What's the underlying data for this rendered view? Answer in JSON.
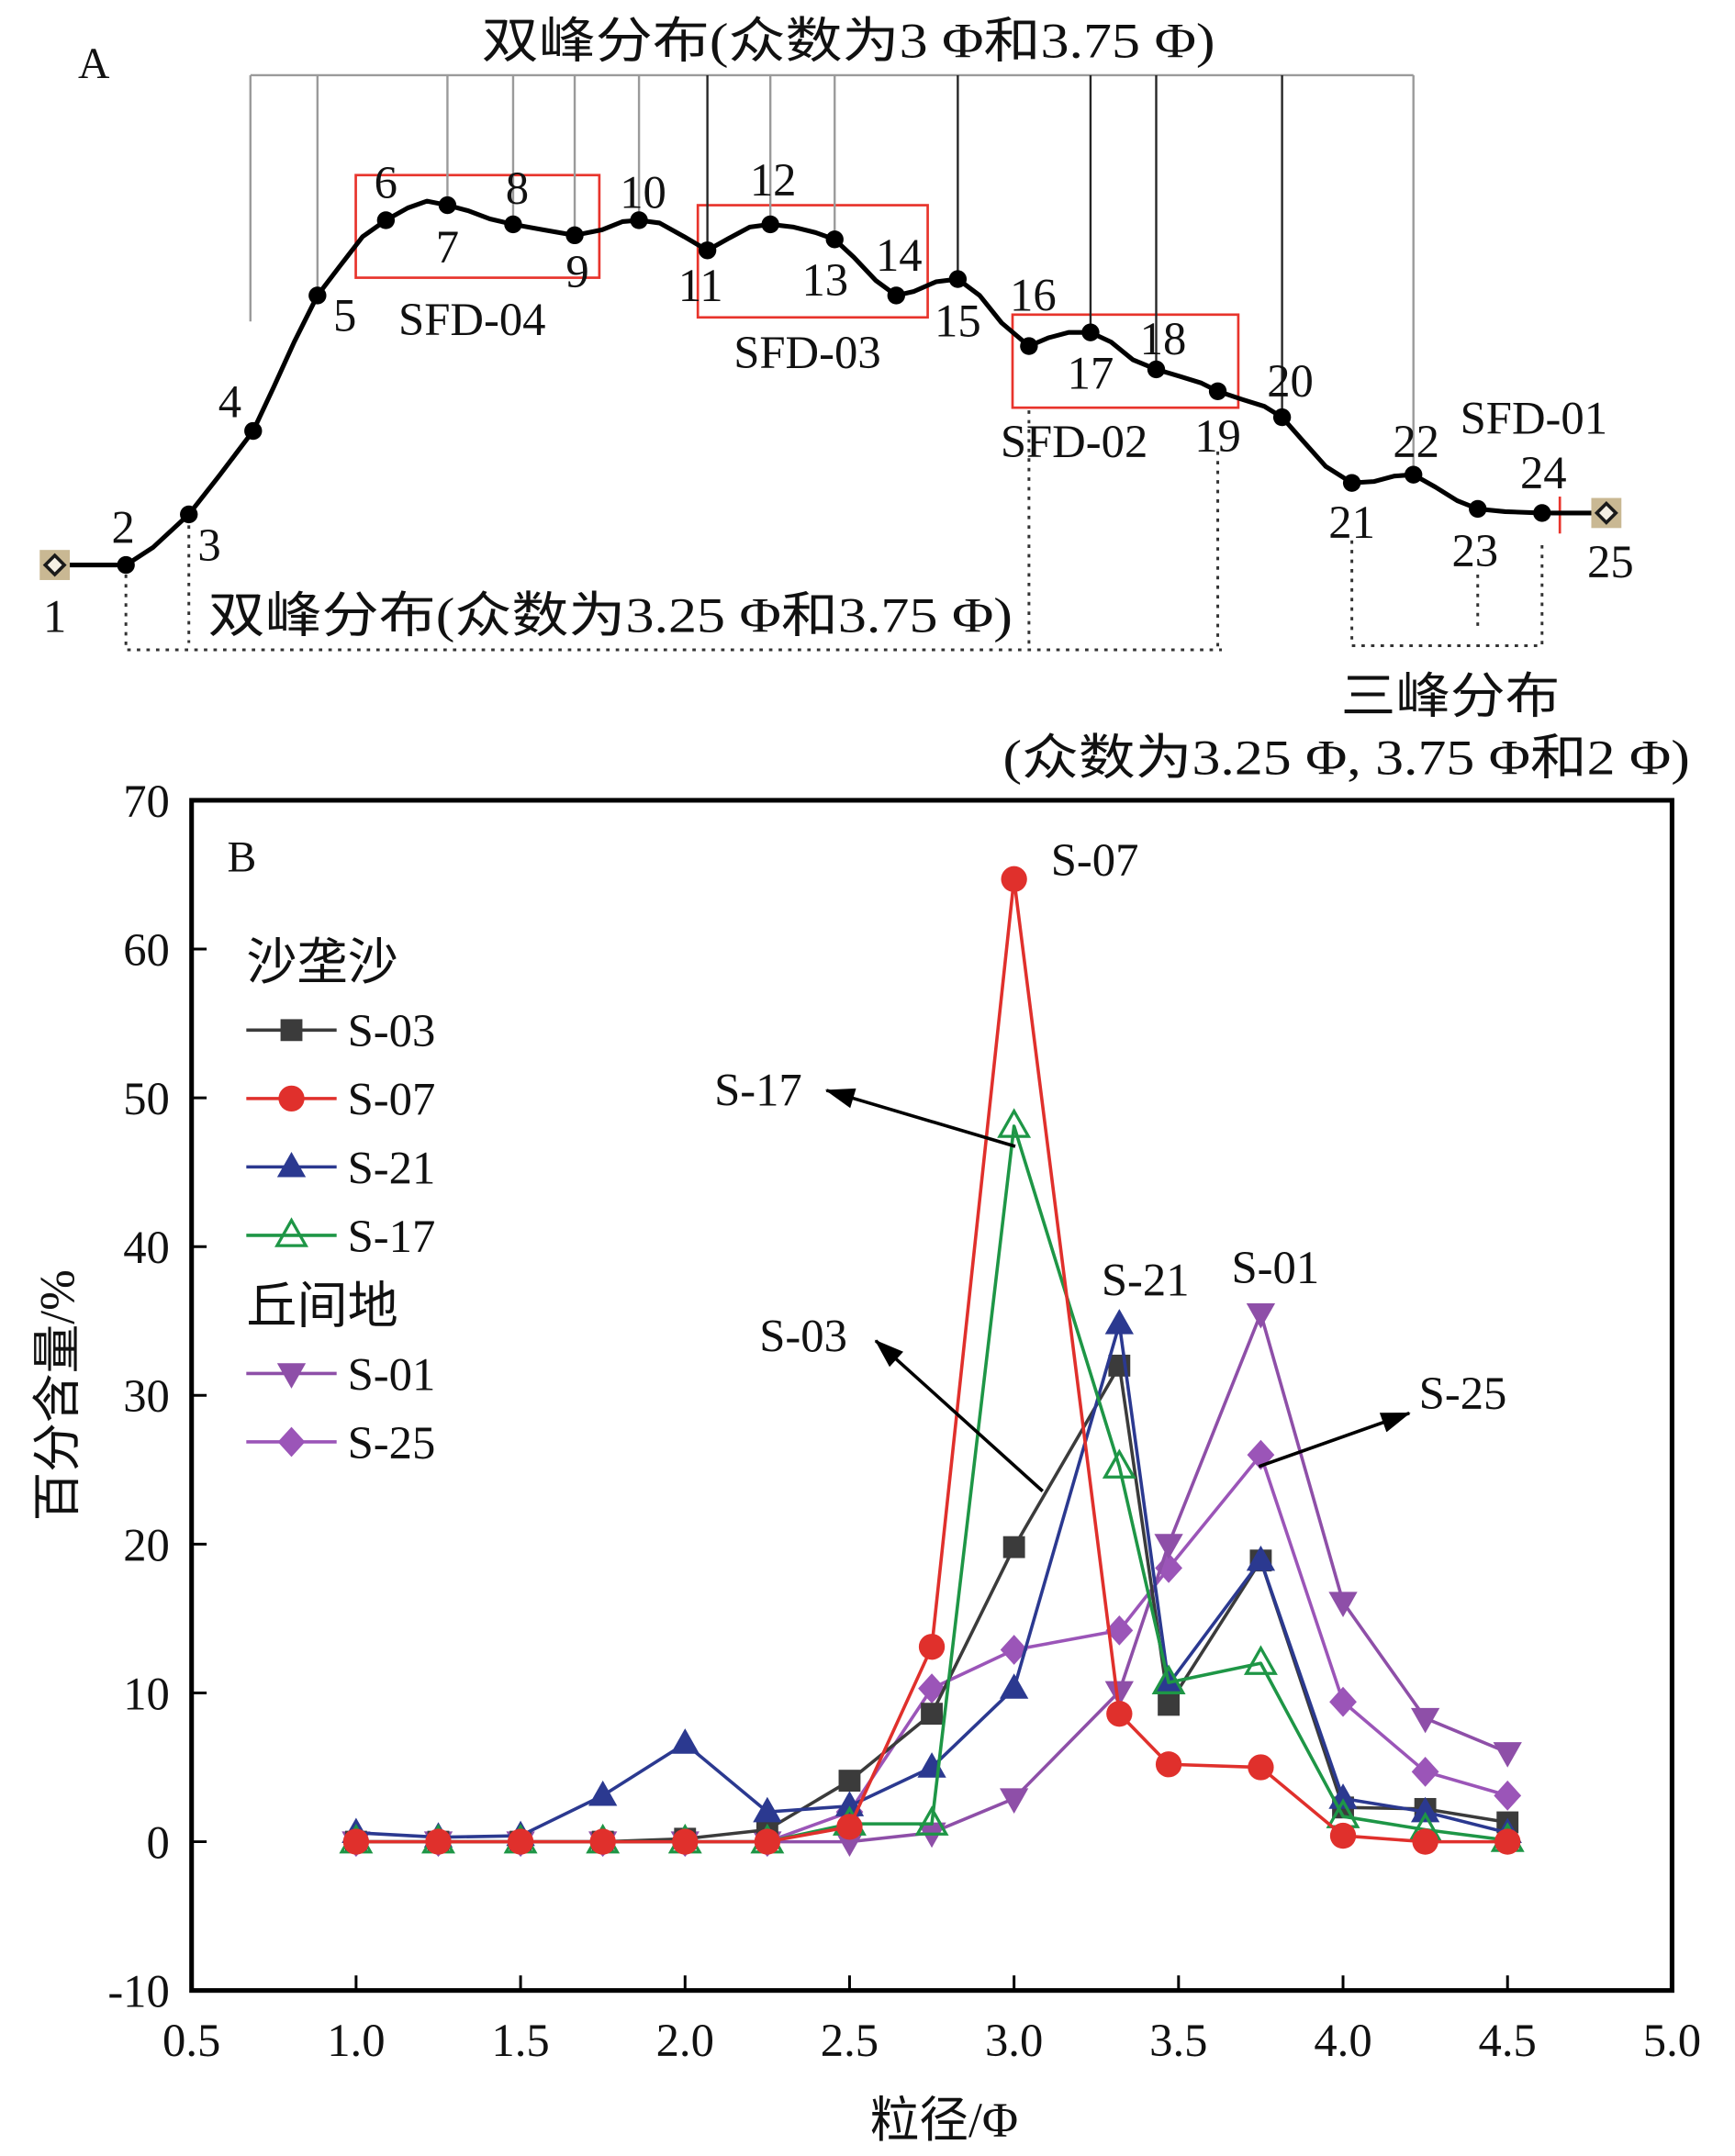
{
  "panel_a": {
    "label": "A",
    "top_bracket_label": "双峰分布(众数为3 Φ和3.75 Φ)",
    "bottom_bracket_label": "双峰分布(众数为3.25 Φ和3.75 Φ)",
    "right_bracket_title": "三峰分布",
    "right_bracket_subtitle": "(众数为3.25 Φ, 3.75 Φ和2 Φ)",
    "box_labels": {
      "sfd04": "SFD-04",
      "sfd03": "SFD-03",
      "sfd02": "SFD-02",
      "sfd01": "SFD-01"
    },
    "point_labels": [
      "1",
      "2",
      "3",
      "4",
      "5",
      "6",
      "7",
      "8",
      "9",
      "10",
      "11",
      "12",
      "13",
      "14",
      "15",
      "16",
      "17",
      "18",
      "19",
      "20",
      "21",
      "22",
      "23",
      "24",
      "25"
    ],
    "colors": {
      "profile": "#000000",
      "box": "#e8342c",
      "endpoint_fill": "#c9b893"
    }
  },
  "chart_data": {
    "type": "line",
    "panel_label": "B",
    "xlabel": "粒径/Φ",
    "ylabel": "百分含量/%",
    "xlim": [
      0.5,
      5.0
    ],
    "ylim": [
      -10,
      70
    ],
    "xtick_labels": [
      "0.5",
      "1.0",
      "1.5",
      "2.0",
      "2.5",
      "3.0",
      "3.5",
      "4.0",
      "4.5",
      "5.0"
    ],
    "ytick_labels": [
      "-10",
      "0",
      "10",
      "20",
      "30",
      "40",
      "50",
      "60",
      "70"
    ],
    "grid": false,
    "legend": {
      "position": "top-left",
      "groups": [
        {
          "title": "沙垄沙",
          "members": [
            0,
            1,
            2,
            3
          ]
        },
        {
          "title": "丘间地",
          "members": [
            4,
            5
          ]
        }
      ]
    },
    "x": [
      1.0,
      1.25,
      1.5,
      1.75,
      2.0,
      2.25,
      2.5,
      2.75,
      3.0,
      3.32,
      3.47,
      3.75,
      4.0,
      4.25,
      4.5
    ],
    "series": [
      {
        "name": "S-03",
        "color": "#3b3b3b",
        "marker": "square",
        "values": [
          0,
          0,
          0,
          0,
          0.2,
          0.8,
          4.1,
          8.6,
          19.8,
          32.0,
          9.2,
          18.9,
          2.3,
          2.2,
          1.3
        ]
      },
      {
        "name": "S-07",
        "color": "#e0302c",
        "marker": "circle",
        "values": [
          0,
          0,
          0,
          0,
          0,
          0,
          1.0,
          13.1,
          64.7,
          8.6,
          5.2,
          5.0,
          0.4,
          0,
          0
        ]
      },
      {
        "name": "S-21",
        "color": "#2b3990",
        "marker": "triangle-up",
        "values": [
          0.6,
          0.3,
          0.4,
          3.1,
          6.6,
          2.0,
          2.4,
          5.0,
          10.3,
          34.8,
          10.6,
          18.9,
          2.9,
          2.0,
          0.6
        ]
      },
      {
        "name": "S-17",
        "color": "#1e9646",
        "marker": "triangle-up-open",
        "values": [
          0,
          0,
          0,
          0,
          0,
          0,
          1.2,
          1.2,
          48.1,
          25.2,
          10.7,
          12.0,
          1.7,
          0.8,
          0.1
        ]
      },
      {
        "name": "S-01",
        "color": "#8e4fa8",
        "marker": "triangle-down",
        "values": [
          0,
          0,
          0,
          0,
          0,
          0,
          0,
          0.6,
          2.9,
          10.1,
          20.0,
          35.5,
          16.1,
          8.3,
          6.0
        ]
      },
      {
        "name": "S-25",
        "color": "#9b55b8",
        "marker": "diamond",
        "values": [
          0,
          0,
          0,
          0,
          0,
          0,
          2.0,
          10.3,
          12.9,
          14.2,
          18.4,
          26.0,
          9.4,
          4.7,
          3.1
        ]
      }
    ],
    "annotations": [
      {
        "text": "S-07",
        "arrow": false
      },
      {
        "text": "S-17",
        "arrow": true
      },
      {
        "text": "S-21",
        "arrow": false
      },
      {
        "text": "S-01",
        "arrow": false
      },
      {
        "text": "S-03",
        "arrow": true
      },
      {
        "text": "S-25",
        "arrow": true
      }
    ]
  }
}
